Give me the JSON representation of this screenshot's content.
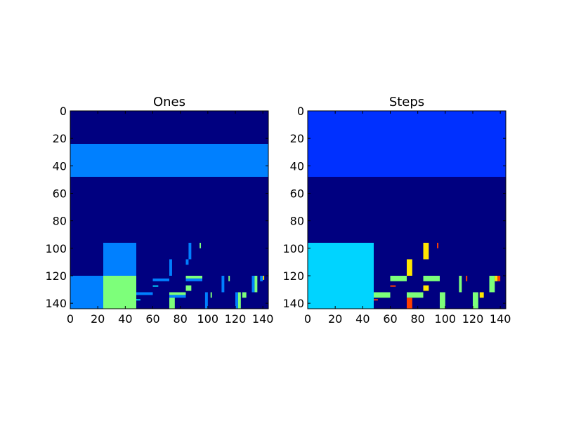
{
  "chart_data": [
    {
      "type": "heatmap",
      "title": "Ones",
      "xlim": [
        0,
        144
      ],
      "ylim": [
        144,
        0
      ],
      "xticks": [
        0,
        20,
        40,
        60,
        80,
        100,
        120,
        140
      ],
      "yticks": [
        0,
        20,
        40,
        60,
        80,
        100,
        120,
        140
      ],
      "background": "#000080",
      "colormap": "jet",
      "regions": [
        {
          "x": [
            0,
            144
          ],
          "y": [
            24,
            48
          ],
          "color": "#0080ff"
        },
        {
          "x": [
            24,
            48
          ],
          "y": [
            96,
            120
          ],
          "color": "#0080ff"
        },
        {
          "x": [
            0,
            24
          ],
          "y": [
            120,
            144
          ],
          "color": "#0080ff"
        },
        {
          "x": [
            24,
            48
          ],
          "y": [
            120,
            144
          ],
          "color": "#7dff7a"
        },
        {
          "x": [
            48,
            60
          ],
          "y": [
            132,
            134
          ],
          "color": "#0080ff"
        },
        {
          "x": [
            48,
            51
          ],
          "y": [
            137,
            138
          ],
          "color": "#00d4ff"
        },
        {
          "x": [
            60,
            72
          ],
          "y": [
            122,
            124
          ],
          "color": "#0080ff"
        },
        {
          "x": [
            60,
            64
          ],
          "y": [
            127,
            128
          ],
          "color": "#00d4ff"
        },
        {
          "x": [
            72,
            74
          ],
          "y": [
            108,
            120
          ],
          "color": "#0080ff"
        },
        {
          "x": [
            72,
            84
          ],
          "y": [
            132,
            134
          ],
          "color": "#7dff7a"
        },
        {
          "x": [
            72,
            84
          ],
          "y": [
            134,
            136
          ],
          "color": "#0080ff"
        },
        {
          "x": [
            72,
            76
          ],
          "y": [
            136,
            144
          ],
          "color": "#7dff7a"
        },
        {
          "x": [
            84,
            86
          ],
          "y": [
            108,
            112
          ],
          "color": "#0080ff"
        },
        {
          "x": [
            86,
            88
          ],
          "y": [
            96,
            108
          ],
          "color": "#0080ff"
        },
        {
          "x": [
            84,
            96
          ],
          "y": [
            120,
            122
          ],
          "color": "#7dff7a"
        },
        {
          "x": [
            84,
            96
          ],
          "y": [
            122,
            124
          ],
          "color": "#0080ff"
        },
        {
          "x": [
            84,
            88
          ],
          "y": [
            127,
            131
          ],
          "color": "#7dff7a"
        },
        {
          "x": [
            94,
            95
          ],
          "y": [
            96,
            100
          ],
          "color": "#7dff7a"
        },
        {
          "x": [
            98,
            100
          ],
          "y": [
            132,
            144
          ],
          "color": "#0080ff"
        },
        {
          "x": [
            102,
            103
          ],
          "y": [
            132,
            136
          ],
          "color": "#7dff7a"
        },
        {
          "x": [
            110,
            112
          ],
          "y": [
            120,
            132
          ],
          "color": "#0080ff"
        },
        {
          "x": [
            115,
            116
          ],
          "y": [
            120,
            124
          ],
          "color": "#7dff7a"
        },
        {
          "x": [
            120,
            122
          ],
          "y": [
            132,
            144
          ],
          "color": "#0080ff"
        },
        {
          "x": [
            122,
            124
          ],
          "y": [
            132,
            144
          ],
          "color": "#7dff7a"
        },
        {
          "x": [
            125,
            128
          ],
          "y": [
            132,
            136
          ],
          "color": "#7dff7a"
        },
        {
          "x": [
            132,
            134
          ],
          "y": [
            120,
            132
          ],
          "color": "#0080ff"
        },
        {
          "x": [
            134,
            136
          ],
          "y": [
            120,
            132
          ],
          "color": "#7dff7a"
        },
        {
          "x": [
            138,
            140
          ],
          "y": [
            120,
            124
          ],
          "color": "#0080ff"
        },
        {
          "x": [
            140,
            141
          ],
          "y": [
            120,
            123
          ],
          "color": "#ffe600"
        }
      ]
    },
    {
      "type": "heatmap",
      "title": "Steps",
      "xlim": [
        0,
        144
      ],
      "ylim": [
        144,
        0
      ],
      "xticks": [
        0,
        20,
        40,
        60,
        80,
        100,
        120,
        140
      ],
      "yticks": [
        0,
        20,
        40,
        60,
        80,
        100,
        120,
        140
      ],
      "background": "#000080",
      "colormap": "jet",
      "regions": [
        {
          "x": [
            0,
            144
          ],
          "y": [
            0,
            48
          ],
          "color": "#0030ff"
        },
        {
          "x": [
            0,
            48
          ],
          "y": [
            96,
            144
          ],
          "color": "#00d4ff"
        },
        {
          "x": [
            48,
            60
          ],
          "y": [
            132,
            136
          ],
          "color": "#7dff7a"
        },
        {
          "x": [
            48,
            51
          ],
          "y": [
            137,
            138
          ],
          "color": "#ff4000"
        },
        {
          "x": [
            60,
            72
          ],
          "y": [
            120,
            124
          ],
          "color": "#7dff7a"
        },
        {
          "x": [
            60,
            64
          ],
          "y": [
            127,
            128
          ],
          "color": "#ff4000"
        },
        {
          "x": [
            72,
            76
          ],
          "y": [
            108,
            120
          ],
          "color": "#ffe600"
        },
        {
          "x": [
            72,
            84
          ],
          "y": [
            132,
            136
          ],
          "color": "#7dff7a"
        },
        {
          "x": [
            72,
            76
          ],
          "y": [
            136,
            144
          ],
          "color": "#ff4000"
        },
        {
          "x": [
            84,
            88
          ],
          "y": [
            96,
            108
          ],
          "color": "#ffe600"
        },
        {
          "x": [
            84,
            96
          ],
          "y": [
            120,
            124
          ],
          "color": "#7dff7a"
        },
        {
          "x": [
            84,
            88
          ],
          "y": [
            127,
            131
          ],
          "color": "#ffe600"
        },
        {
          "x": [
            94,
            95
          ],
          "y": [
            96,
            100
          ],
          "color": "#ff4000"
        },
        {
          "x": [
            96,
            100
          ],
          "y": [
            132,
            144
          ],
          "color": "#7dff7a"
        },
        {
          "x": [
            110,
            112
          ],
          "y": [
            120,
            132
          ],
          "color": "#7dff7a"
        },
        {
          "x": [
            115,
            116
          ],
          "y": [
            120,
            124
          ],
          "color": "#ff4000"
        },
        {
          "x": [
            120,
            124
          ],
          "y": [
            132,
            144
          ],
          "color": "#7dff7a"
        },
        {
          "x": [
            125,
            128
          ],
          "y": [
            132,
            136
          ],
          "color": "#ffe600"
        },
        {
          "x": [
            132,
            136
          ],
          "y": [
            120,
            132
          ],
          "color": "#7dff7a"
        },
        {
          "x": [
            136,
            138
          ],
          "y": [
            120,
            124
          ],
          "color": "#ffe600"
        },
        {
          "x": [
            138,
            140
          ],
          "y": [
            120,
            124
          ],
          "color": "#ff4000"
        }
      ]
    }
  ]
}
